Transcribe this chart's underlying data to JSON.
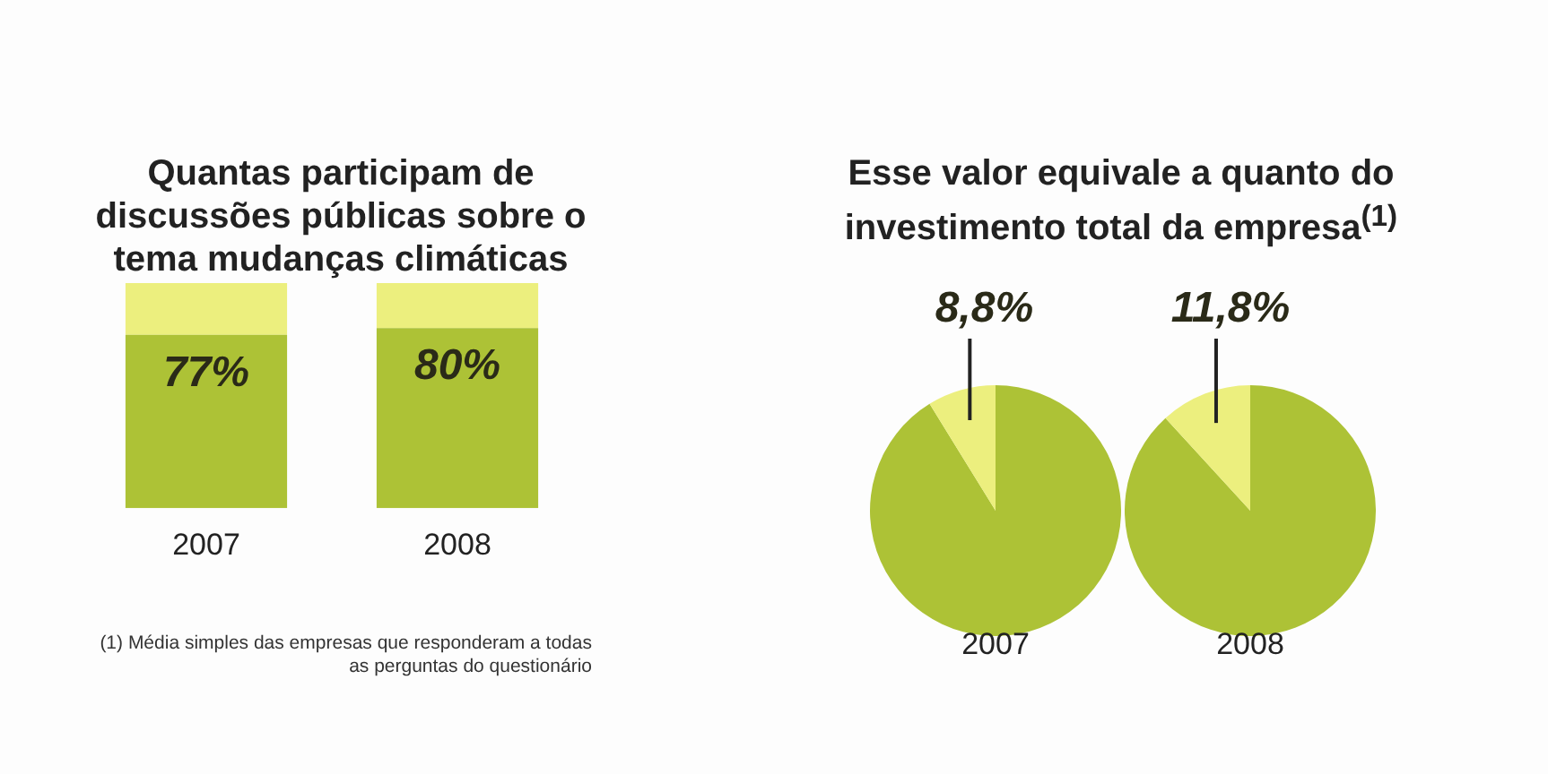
{
  "chart_data": [
    {
      "type": "bar",
      "title": "Quantas participam de discussões públicas sobre o tema mudanças climáticas",
      "categories": [
        "2007",
        "2008"
      ],
      "stacked": true,
      "ylim": [
        0,
        100
      ],
      "tick_labels": "x",
      "series": [
        {
          "color": "#adc236",
          "values": [
            77,
            80
          ],
          "value_labels": [
            "77%",
            "80%"
          ]
        },
        {
          "color": "#ecef7e",
          "values": [
            23,
            20
          ]
        }
      ],
      "annotations": [
        "(1) Média simples das empresas que responderam a todas as perguntas do questionário"
      ]
    },
    {
      "type": "pie",
      "title": "Esse valor equivale a quanto do investimento total da empresa$^{(1)}$",
      "categories": [
        null,
        null
      ],
      "values": [
        91.2,
        8.8
      ],
      "colors": [
        "#adc236",
        "#ecef7e"
      ],
      "value_labels": [
        null,
        "8,8%"
      ],
      "xlabel": "2007"
    },
    {
      "type": "pie",
      "categories": [
        null,
        null
      ],
      "values": [
        88.2,
        11.8
      ],
      "colors": [
        "#adc236",
        "#ecef7e"
      ],
      "value_labels": [
        null,
        "11,8%"
      ],
      "xlabel": "2008"
    }
  ]
}
